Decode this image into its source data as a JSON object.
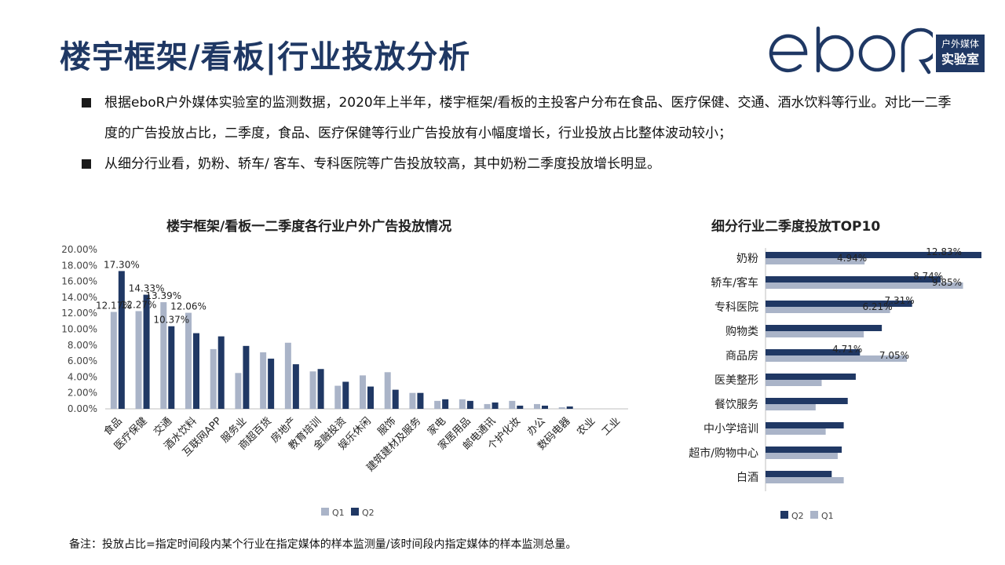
{
  "title": "楼宇框架/看板|行业投放分析",
  "logo": {
    "wordmark": "eboR",
    "line1": "户外媒体",
    "line2": "实验室"
  },
  "bullets": [
    "根据eboR户外媒体实验室的监测数据，2020年上半年，楼宇框架/看板的主投客户分布在食品、医疗保健、交通、酒水饮料等行业。对比一二季度的广告投放占比，二季度，食品、医疗保健等行业广告投放有小幅度增长，行业投放占比整体波动较小；",
    "从细分行业看，奶粉、轿车/ 客车、专科医院等广告投放较高，其中奶粉二季度投放增长明显。"
  ],
  "colors": {
    "q1": "#aab4c8",
    "q2": "#203864",
    "brand": "#1f3864"
  },
  "footnote": "备注：投放占比=指定时间段内某个行业在指定媒体的样本监测量/该时间段内指定媒体的样本监测总量。",
  "chart_data": [
    {
      "type": "bar",
      "title": "楼宇框架/看板一二季度各行业户外广告投放情况",
      "categories": [
        "食品",
        "医疗保健",
        "交通",
        "酒水饮料",
        "互联网APP",
        "服务业",
        "商超百货",
        "房地产",
        "教育培训",
        "金融投资",
        "娱乐休闲",
        "服饰",
        "建筑建材及服务",
        "家电",
        "家居用品",
        "邮电通讯",
        "个护化妆",
        "办公",
        "数码电器",
        "农业",
        "工业"
      ],
      "series": [
        {
          "name": "Q1",
          "values": [
            12.17,
            12.27,
            13.39,
            12.06,
            7.5,
            4.5,
            7.1,
            8.3,
            4.7,
            2.9,
            4.2,
            4.6,
            2.0,
            1.0,
            1.2,
            0.6,
            1.0,
            0.6,
            0.2,
            0,
            0
          ]
        },
        {
          "name": "Q2",
          "values": [
            17.3,
            14.33,
            10.37,
            9.5,
            9.1,
            7.9,
            6.3,
            5.6,
            5.0,
            3.4,
            2.8,
            2.4,
            2.0,
            1.2,
            1.0,
            0.8,
            0.4,
            0.4,
            0.3,
            0,
            0
          ]
        }
      ],
      "data_labels": [
        {
          "series": "Q1",
          "index": 0,
          "text": "12.17%"
        },
        {
          "series": "Q2",
          "index": 0,
          "text": "17.30%"
        },
        {
          "series": "Q1",
          "index": 1,
          "text": "12.27%"
        },
        {
          "series": "Q2",
          "index": 1,
          "text": "14.33%"
        },
        {
          "series": "Q1",
          "index": 2,
          "text": "13.39%"
        },
        {
          "series": "Q2",
          "index": 2,
          "text": "10.37%"
        },
        {
          "series": "Q1",
          "index": 3,
          "text": "12.06%"
        }
      ],
      "yticks": [
        "0.00%",
        "2.00%",
        "4.00%",
        "6.00%",
        "8.00%",
        "10.00%",
        "12.00%",
        "14.00%",
        "16.00%",
        "18.00%",
        "20.00%"
      ],
      "ylim": [
        0,
        20
      ],
      "grid": false,
      "legend": {
        "position": "bottom",
        "items": [
          "Q1",
          "Q2"
        ]
      }
    },
    {
      "type": "bar",
      "orientation": "horizontal",
      "title": "细分行业二季度投放TOP10",
      "categories": [
        "奶粉",
        "轿车/客车",
        "专科医院",
        "购物类",
        "商品房",
        "医美整形",
        "餐饮服务",
        "中小学培训",
        "超市/购物中心",
        "白酒"
      ],
      "series": [
        {
          "name": "Q2",
          "values": [
            12.83,
            8.74,
            7.31,
            5.8,
            4.71,
            4.5,
            4.1,
            3.9,
            3.8,
            3.3
          ]
        },
        {
          "name": "Q1",
          "values": [
            4.94,
            9.85,
            6.21,
            4.9,
            7.05,
            2.8,
            2.5,
            3.0,
            3.6,
            3.9
          ]
        }
      ],
      "data_labels": [
        {
          "series": "Q2",
          "index": 0,
          "text": "12.83%"
        },
        {
          "series": "Q1",
          "index": 0,
          "text": "4.94%"
        },
        {
          "series": "Q2",
          "index": 1,
          "text": "8.74%"
        },
        {
          "series": "Q1",
          "index": 1,
          "text": "9.85%"
        },
        {
          "series": "Q2",
          "index": 2,
          "text": "7.31%"
        },
        {
          "series": "Q1",
          "index": 2,
          "text": "6.21%"
        },
        {
          "series": "Q2",
          "index": 4,
          "text": "4.71%"
        },
        {
          "series": "Q1",
          "index": 4,
          "text": "7.05%"
        }
      ],
      "xlim": [
        0,
        13
      ],
      "grid": false,
      "legend": {
        "position": "bottom",
        "items": [
          "Q2",
          "Q1"
        ]
      }
    }
  ]
}
